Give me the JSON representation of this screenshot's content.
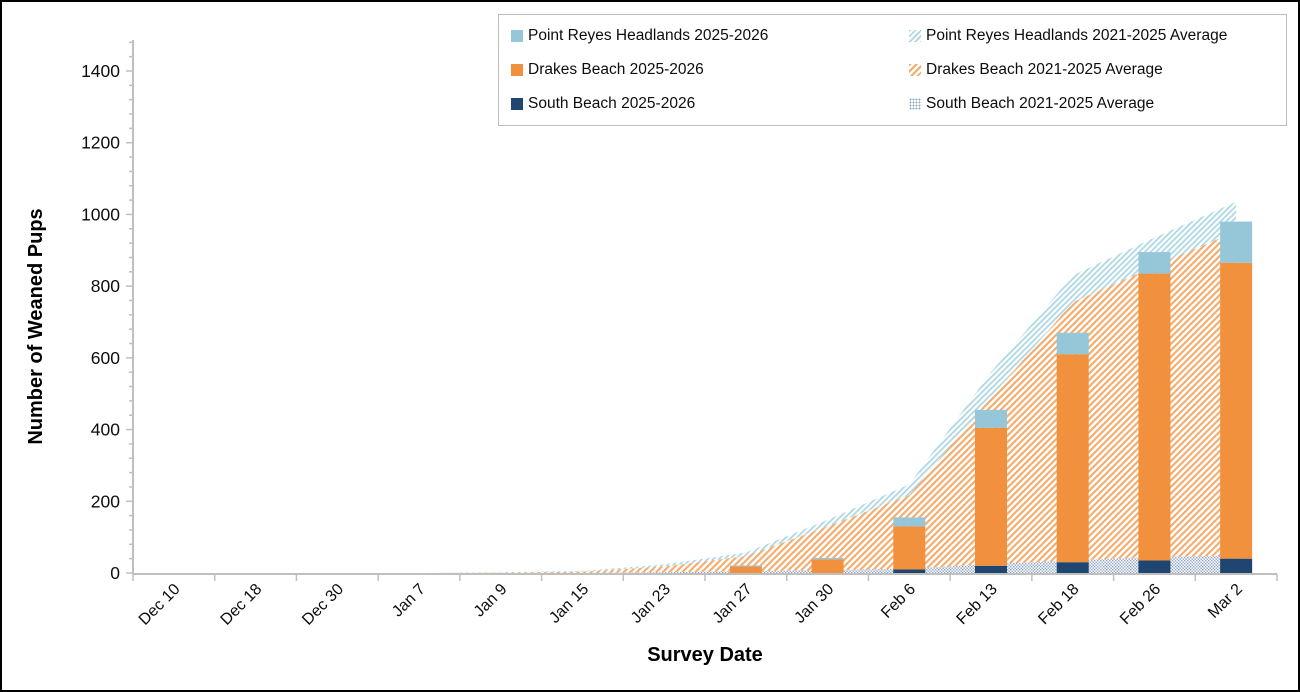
{
  "figure": {
    "background": "#ffffff",
    "border_color": "#000000",
    "axis_line_color": "#BFBFBF",
    "text_color": "#0d0d0d"
  },
  "legend": {
    "items": [
      {
        "label": "Point Reyes Headlands 2025-2026",
        "swatch": "solid-prh"
      },
      {
        "label": "Point Reyes Headlands 2021-2025 Average",
        "swatch": "hatch-prh"
      },
      {
        "label": "Drakes Beach 2025-2026",
        "swatch": "solid-db"
      },
      {
        "label": "Drakes Beach 2021-2025 Average",
        "swatch": "hatch-db"
      },
      {
        "label": "South Beach 2025-2026",
        "swatch": "solid-sb"
      },
      {
        "label": "South Beach 2021-2025 Average",
        "swatch": "hatch-sb"
      }
    ]
  },
  "chart_data": {
    "type": "combo: stacked bars (2025-2026) over stacked hatched areas (2021-2025 averages)",
    "title": "",
    "xlabel": "Survey Date",
    "ylabel": "Number of  Weaned Pups",
    "ylim": [
      0,
      1400
    ],
    "y_ticks": [
      0,
      200,
      400,
      600,
      800,
      1000,
      1200,
      1400
    ],
    "y_minor_unit": 40,
    "grid": false,
    "legend_position": "top-right-inside-border",
    "categories": [
      "Dec 10",
      "Dec 18",
      "Dec 30",
      "Jan 7",
      "Jan 9",
      "Jan 15",
      "Jan 23",
      "Jan 27",
      "Jan 30",
      "Feb 6",
      "Feb 13",
      "Feb 18",
      "Feb 26",
      "Mar 2"
    ],
    "bar_series": [
      {
        "name": "South Beach 2025-2026",
        "color": "#1F4571",
        "values": [
          0,
          0,
          0,
          0,
          0,
          0,
          0,
          0,
          0,
          10,
          20,
          30,
          35,
          40
        ]
      },
      {
        "name": "Drakes Beach 2025-2026",
        "color": "#F2913D",
        "values": [
          0,
          0,
          0,
          0,
          0,
          0,
          0,
          18,
          38,
          120,
          385,
          580,
          800,
          825
        ]
      },
      {
        "name": "Point Reyes Headlands 2025-2026",
        "color": "#95C7D9",
        "values": [
          0,
          0,
          0,
          0,
          0,
          0,
          0,
          3,
          4,
          25,
          50,
          60,
          60,
          115
        ]
      }
    ],
    "area_series": [
      {
        "name": "South Beach 2021-2025 Average",
        "color": "#8FA6C8",
        "pattern": "dots",
        "values": [
          0,
          0,
          0,
          0,
          0,
          0,
          2,
          5,
          8,
          12,
          25,
          35,
          45,
          48
        ]
      },
      {
        "name": "Drakes Beach 2021-2025 Average",
        "color": "#F5AB6B",
        "pattern": "diagonal",
        "values": [
          0,
          0,
          0,
          0,
          1,
          4,
          16,
          42,
          122,
          205,
          465,
          720,
          810,
          905
        ]
      },
      {
        "name": "Point Reyes Headlands 2021-2025 Average",
        "color": "#A9D6E5",
        "pattern": "diagonal",
        "values": [
          0,
          0,
          0,
          0,
          1,
          2,
          6,
          10,
          18,
          30,
          70,
          75,
          80,
          82
        ]
      }
    ]
  }
}
